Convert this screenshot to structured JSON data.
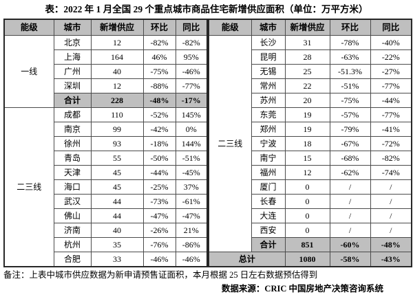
{
  "title": "表：2022 年 1 月全国 29 个重点城市商品住宅新增供应面积（单位：万平方米）",
  "columns": [
    "能级",
    "城市",
    "新增供应",
    "环比",
    "同比"
  ],
  "tables": [
    {
      "side": "left",
      "tiers": [
        {
          "label": "一线",
          "rows": [
            {
              "city": "北京",
              "supply": "12",
              "mom": "-82%",
              "yoy": "-82%"
            },
            {
              "city": "上海",
              "supply": "164",
              "mom": "46%",
              "yoy": "95%"
            },
            {
              "city": "广州",
              "supply": "40",
              "mom": "-75%",
              "yoy": "-46%"
            },
            {
              "city": "深圳",
              "supply": "12",
              "mom": "-88%",
              "yoy": "-77%"
            },
            {
              "city": "合计",
              "supply": "228",
              "mom": "-48%",
              "yoy": "-17%",
              "total": true
            }
          ]
        },
        {
          "label": "二三线",
          "rows": [
            {
              "city": "成都",
              "supply": "110",
              "mom": "-52%",
              "yoy": "145%"
            },
            {
              "city": "南京",
              "supply": "99",
              "mom": "-42%",
              "yoy": "0%"
            },
            {
              "city": "徐州",
              "supply": "93",
              "mom": "-18%",
              "yoy": "144%"
            },
            {
              "city": "青岛",
              "supply": "55",
              "mom": "-50%",
              "yoy": "-51%"
            },
            {
              "city": "天津",
              "supply": "45",
              "mom": "-44%",
              "yoy": "-45%"
            },
            {
              "city": "海口",
              "supply": "45",
              "mom": "-25%",
              "yoy": "37%"
            },
            {
              "city": "武汉",
              "supply": "44",
              "mom": "-73%",
              "yoy": "-61%"
            },
            {
              "city": "佛山",
              "supply": "44",
              "mom": "-47%",
              "yoy": "-47%"
            },
            {
              "city": "济南",
              "supply": "40",
              "mom": "-26%",
              "yoy": "21%"
            },
            {
              "city": "杭州",
              "supply": "35",
              "mom": "-76%",
              "yoy": "-86%"
            },
            {
              "city": "合肥",
              "supply": "33",
              "mom": "-46%",
              "yoy": "-46%"
            }
          ]
        }
      ]
    },
    {
      "side": "right",
      "tiers": [
        {
          "label": "二三线",
          "rows": [
            {
              "city": "长沙",
              "supply": "31",
              "mom": "-78%",
              "yoy": "-40%"
            },
            {
              "city": "昆明",
              "supply": "28",
              "mom": "-63%",
              "yoy": "-22%"
            },
            {
              "city": "无锡",
              "supply": "25",
              "mom": "-51.3%",
              "yoy": "-27%"
            },
            {
              "city": "常州",
              "supply": "22",
              "mom": "-51%",
              "yoy": "-77%"
            },
            {
              "city": "苏州",
              "supply": "20",
              "mom": "-75%",
              "yoy": "-44%"
            },
            {
              "city": "东莞",
              "supply": "19",
              "mom": "-57%",
              "yoy": "-77%"
            },
            {
              "city": "郑州",
              "supply": "19",
              "mom": "-79%",
              "yoy": "-41%"
            },
            {
              "city": "宁波",
              "supply": "18",
              "mom": "-67%",
              "yoy": "-72%"
            },
            {
              "city": "南宁",
              "supply": "15",
              "mom": "-68%",
              "yoy": "-82%"
            },
            {
              "city": "福州",
              "supply": "12",
              "mom": "-62%",
              "yoy": "-74%"
            },
            {
              "city": "厦门",
              "supply": "0",
              "mom": "/",
              "yoy": "/"
            },
            {
              "city": "长春",
              "supply": "0",
              "mom": "/",
              "yoy": "/"
            },
            {
              "city": "大连",
              "supply": "0",
              "mom": "/",
              "yoy": "/"
            },
            {
              "city": "西安",
              "supply": "0",
              "mom": "/",
              "yoy": "/"
            },
            {
              "city": "合计",
              "supply": "851",
              "mom": "-60%",
              "yoy": "-48%",
              "total": true
            }
          ]
        }
      ],
      "grand_total": {
        "label": "总计",
        "supply": "1080",
        "mom": "-58%",
        "yoy": "-43%"
      }
    }
  ],
  "footnote": "备注：上表中城市供应数据为新申请预售证面积，本月根据 25 日左右数据预估得到",
  "source": "数据来源：CRIC 中国房地产决策咨询系统",
  "colors": {
    "header_fill": "#bfbfbf",
    "total_fill": "#bfbfbf",
    "border": "#4a4a4a",
    "text": "#000000"
  }
}
